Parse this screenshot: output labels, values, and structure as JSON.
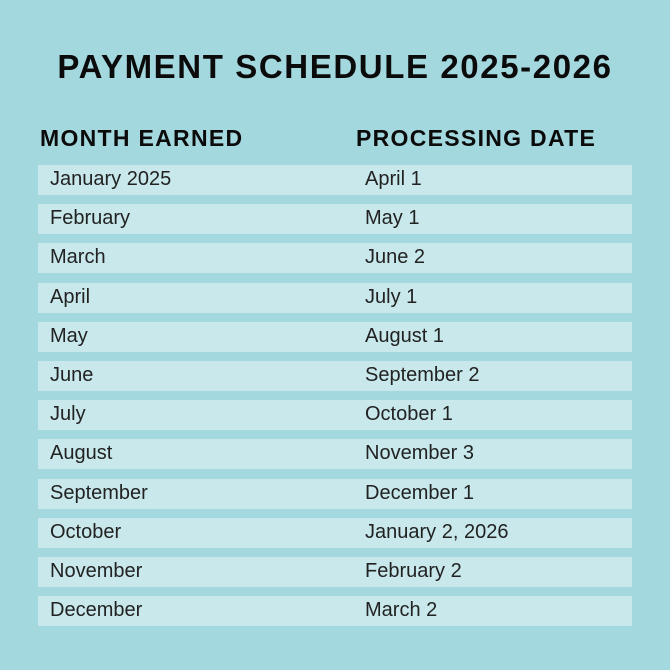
{
  "title": "PAYMENT SCHEDULE 2025-2026",
  "columns": [
    "MONTH EARNED",
    "PROCESSING DATE"
  ],
  "rows": [
    [
      "January 2025",
      "April 1"
    ],
    [
      "February",
      "May 1"
    ],
    [
      "March",
      "June 2"
    ],
    [
      "April",
      "July 1"
    ],
    [
      "May",
      "August 1"
    ],
    [
      "June",
      "September 2"
    ],
    [
      "July",
      "October 1"
    ],
    [
      "August",
      "November 3"
    ],
    [
      "September",
      "December 1"
    ],
    [
      "October",
      "January 2, 2026"
    ],
    [
      "November",
      "February 2"
    ],
    [
      "December",
      "March 2"
    ]
  ]
}
